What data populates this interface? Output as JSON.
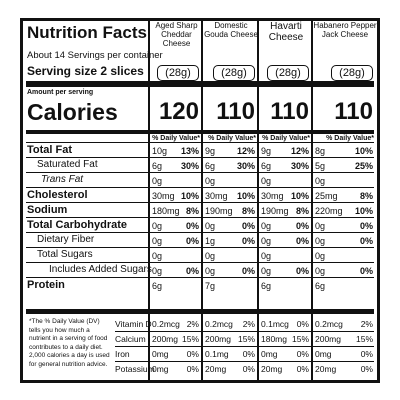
{
  "title": "Nutrition Facts",
  "servings": "About 14 Servings per container",
  "serving_size_label": "Serving size",
  "serving_size_value": "2 slices",
  "amount_per_serving": "Amount per serving",
  "calories_label": "Calories",
  "dv_header": "% Daily Value*",
  "products": [
    {
      "name": "Aged Sharp\nCheddar Cheese",
      "serving": "(28g)",
      "calories": "120"
    },
    {
      "name": "Domestic\nGouda Cheese",
      "serving": "(28g)",
      "calories": "110"
    },
    {
      "name": "Havarti\nCheese",
      "serving": "(28g)",
      "calories": "110"
    },
    {
      "name": "Habanero Pepper\nJack Cheese",
      "serving": "(28g)",
      "calories": "110"
    }
  ],
  "nutrients": [
    {
      "label": "Total Fat",
      "values": [
        [
          "10g",
          "13%"
        ],
        [
          "9g",
          "12%"
        ],
        [
          "9g",
          "12%"
        ],
        [
          "8g",
          "10%"
        ]
      ]
    },
    {
      "label": "Saturated Fat",
      "values": [
        [
          "6g",
          "30%"
        ],
        [
          "6g",
          "30%"
        ],
        [
          "6g",
          "30%"
        ],
        [
          "5g",
          "25%"
        ]
      ]
    },
    {
      "label": "Trans Fat",
      "values": [
        [
          "0g",
          ""
        ],
        [
          "0g",
          ""
        ],
        [
          "0g",
          ""
        ],
        [
          "0g",
          ""
        ]
      ]
    },
    {
      "label": "Cholesterol",
      "values": [
        [
          "30mg",
          "10%"
        ],
        [
          "30mg",
          "10%"
        ],
        [
          "30mg",
          "10%"
        ],
        [
          "25mg",
          "8%"
        ]
      ]
    },
    {
      "label": "Sodium",
      "values": [
        [
          "180mg",
          "8%"
        ],
        [
          "190mg",
          "8%"
        ],
        [
          "190mg",
          "8%"
        ],
        [
          "220mg",
          "10%"
        ]
      ]
    },
    {
      "label": "Total Carbohydrate",
      "values": [
        [
          "0g",
          "0%"
        ],
        [
          "0g",
          "0%"
        ],
        [
          "0g",
          "0%"
        ],
        [
          "0g",
          "0%"
        ]
      ]
    },
    {
      "label": "Dietary Fiber",
      "values": [
        [
          "0g",
          "0%"
        ],
        [
          "1g",
          "0%"
        ],
        [
          "0g",
          "0%"
        ],
        [
          "0g",
          "0%"
        ]
      ]
    },
    {
      "label": "Total Sugars",
      "values": [
        [
          "0g",
          ""
        ],
        [
          "0g",
          ""
        ],
        [
          "0g",
          ""
        ],
        [
          "0g",
          ""
        ]
      ]
    },
    {
      "label": "Includes Added Sugars",
      "values": [
        [
          "0g",
          "0%"
        ],
        [
          "0g",
          "0%"
        ],
        [
          "0g",
          "0%"
        ],
        [
          "0g",
          "0%"
        ]
      ]
    },
    {
      "label": "Protein",
      "values": [
        [
          "6g",
          ""
        ],
        [
          "7g",
          ""
        ],
        [
          "6g",
          ""
        ],
        [
          "6g",
          ""
        ]
      ]
    }
  ],
  "vitamins": [
    {
      "label": "Vitamin D",
      "values": [
        [
          "0.2mcg",
          "2%"
        ],
        [
          "0.2mcg",
          "2%"
        ],
        [
          "0.1mcg",
          "0%"
        ],
        [
          "0.2mcg",
          "2%"
        ]
      ]
    },
    {
      "label": "Calcium",
      "values": [
        [
          "200mg",
          "15%"
        ],
        [
          "200mg",
          "15%"
        ],
        [
          "180mg",
          "15%"
        ],
        [
          "200mg",
          "15%"
        ]
      ]
    },
    {
      "label": "Iron",
      "values": [
        [
          "0mg",
          "0%"
        ],
        [
          "0.1mg",
          "0%"
        ],
        [
          "0mg",
          "0%"
        ],
        [
          "0mg",
          "0%"
        ]
      ]
    },
    {
      "label": "Potassium",
      "values": [
        [
          "0mg",
          "0%"
        ],
        [
          "20mg",
          "0%"
        ],
        [
          "20mg",
          "0%"
        ],
        [
          "20mg",
          "0%"
        ]
      ]
    }
  ],
  "footnote": "*The % Daily Value (DV) tells you how much a nutrient in a serving of food contributes to a daily diet. 2,000 calories a day is used for general nutrition advice."
}
